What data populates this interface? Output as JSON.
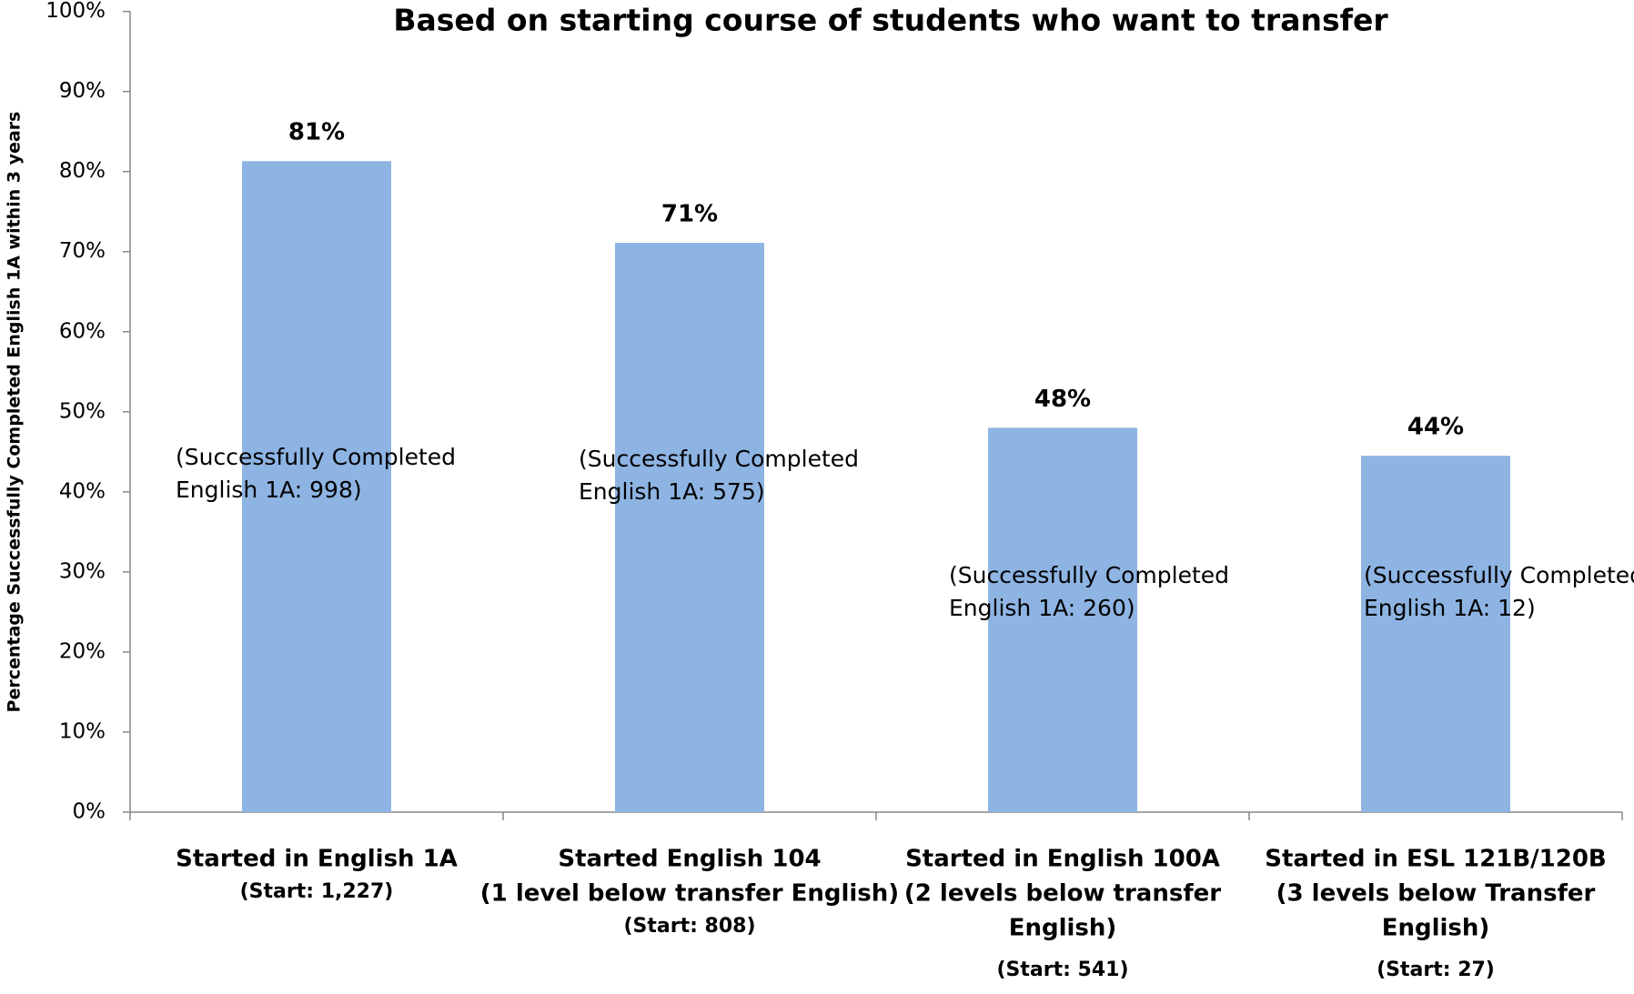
{
  "chart_data": {
    "type": "bar",
    "title": "Based on starting course of students who want to transfer",
    "y_label": "Percentage Successfully Completed English 1A within 3 years",
    "categories": [
      [
        "Started in English 1A"
      ],
      [
        "Started English 104",
        "(1 level below transfer English)"
      ],
      [
        "Started in English 100A",
        "(2 levels below transfer",
        "English)"
      ],
      [
        "Started in ESL 121B/120B",
        "(3 levels below Transfer",
        "English)"
      ]
    ],
    "start_labels": [
      "(Start: 1,227)",
      "(Start:  808)",
      "(Start:  541)",
      "(Start:  27)"
    ],
    "values": [
      81.3,
      71.1,
      48.0,
      44.5
    ],
    "value_labels": [
      "81%",
      "71%",
      "48%",
      "44%"
    ],
    "annotations": [
      [
        "(Successfully  Completed",
        "English 1A:  998)"
      ],
      [
        "(Successfully  Completed",
        "English 1A:  575)"
      ],
      [
        "(Successfully  Completed",
        "English 1A:  260)"
      ],
      [
        "(Successfully  Completed",
        "English 1A:  12)"
      ]
    ],
    "color": "#8eb4e3",
    "ylim": [
      0,
      100
    ],
    "yticks": [
      {
        "value": 0,
        "label": "0%"
      },
      {
        "value": 10,
        "label": "10%"
      },
      {
        "value": 20,
        "label": "20%"
      },
      {
        "value": 30,
        "label": "30%"
      },
      {
        "value": 40,
        "label": "40%"
      },
      {
        "value": 50,
        "label": "50%"
      },
      {
        "value": 60,
        "label": "60%"
      },
      {
        "value": 70,
        "label": "70%"
      },
      {
        "value": 80,
        "label": "80%"
      },
      {
        "value": 90,
        "label": "90%"
      },
      {
        "value": 100,
        "label": "100%"
      }
    ],
    "grid": false
  }
}
